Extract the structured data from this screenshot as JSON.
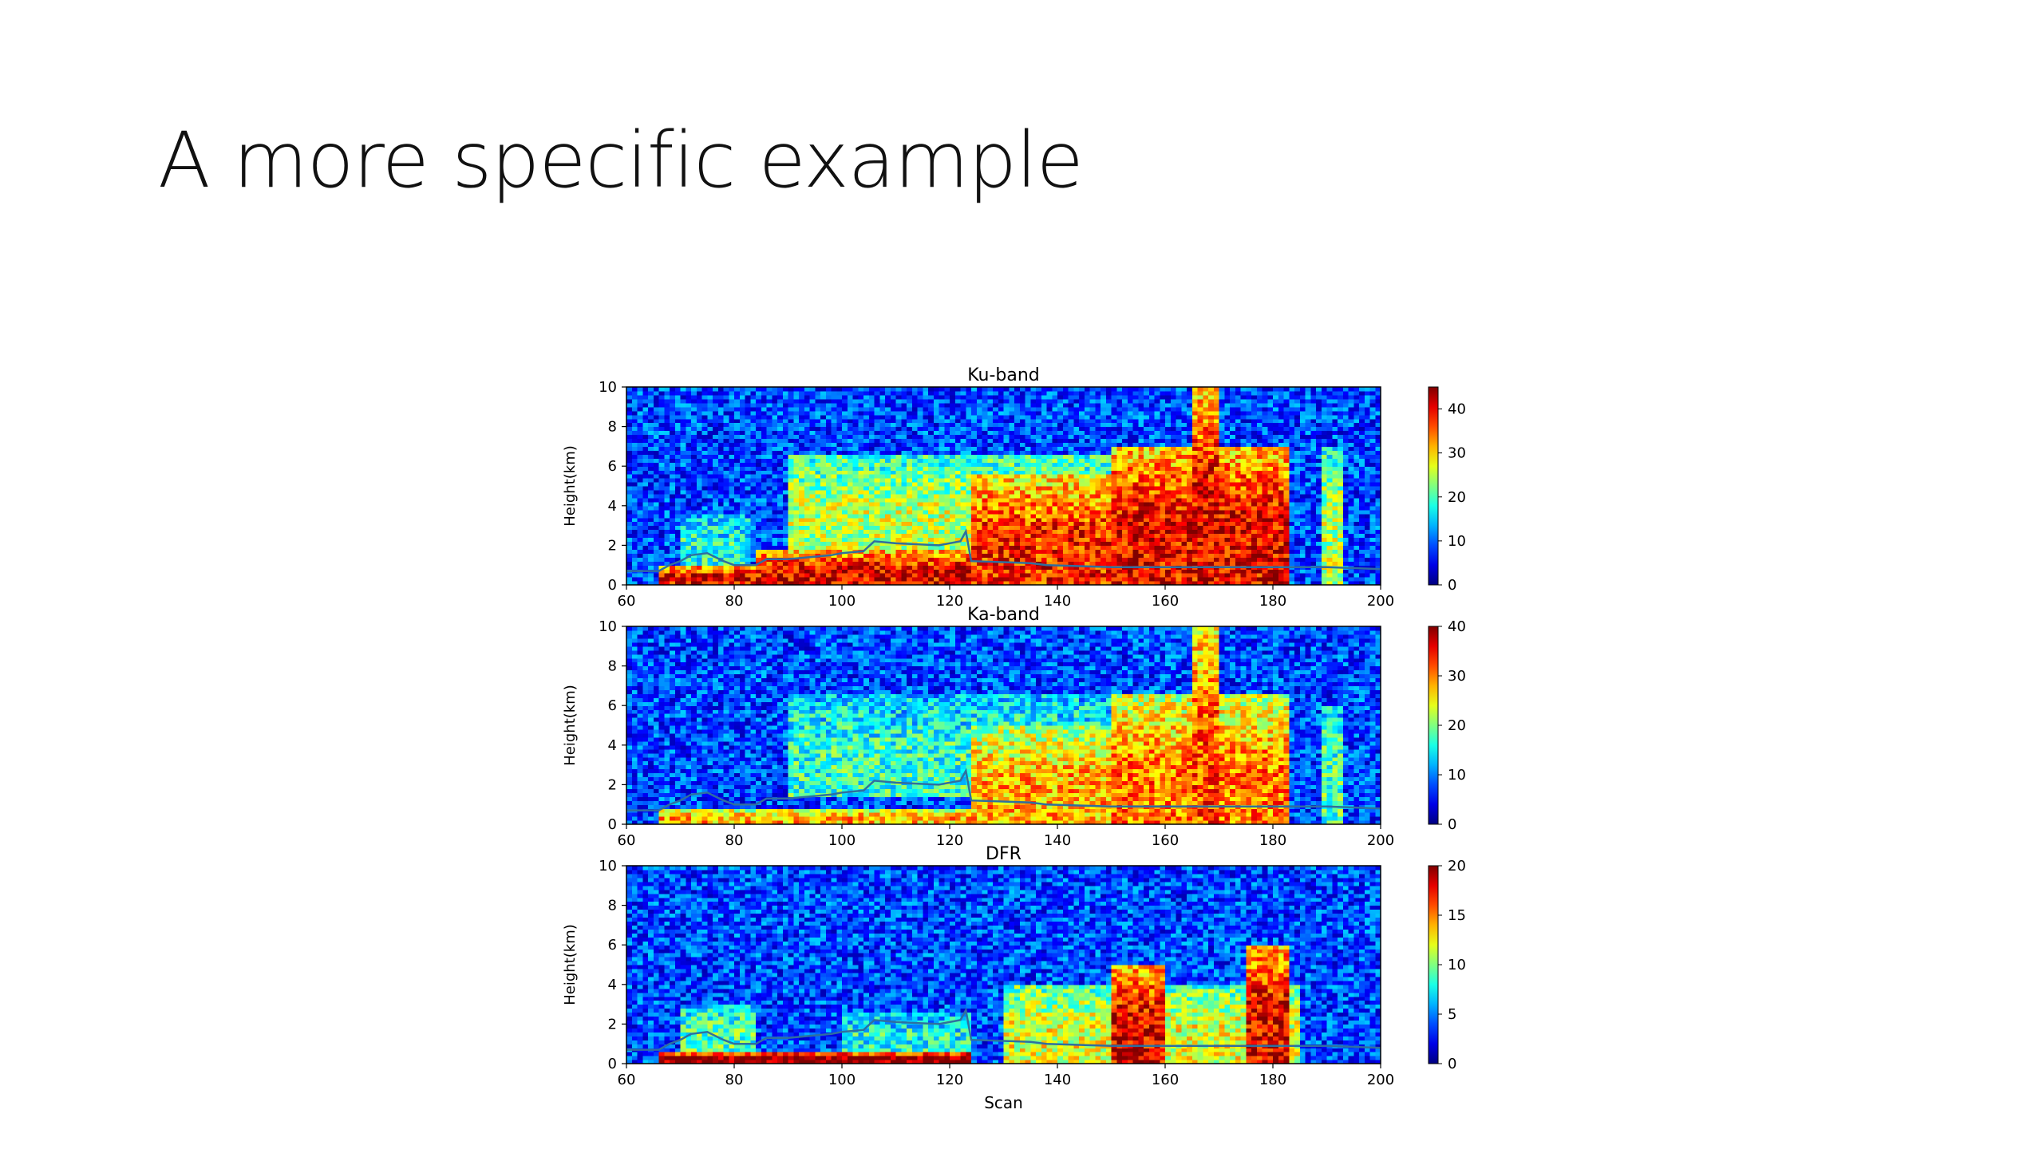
{
  "slide": {
    "title": "A more specific example"
  },
  "chart_data": [
    {
      "type": "heatmap",
      "title": "Ku-band",
      "xlabel": "",
      "ylabel": "Height(km)",
      "xlim": [
        60,
        200
      ],
      "ylim": [
        0,
        10
      ],
      "xticks": [
        60,
        80,
        100,
        120,
        140,
        160,
        180,
        200
      ],
      "yticks": [
        0,
        2,
        4,
        6,
        8,
        10
      ],
      "colorbar": {
        "min": 0,
        "max": 45,
        "ticks": [
          0,
          10,
          20,
          30,
          40
        ],
        "colormap": "jet"
      },
      "overlay_line_color": "#2f6f9f",
      "overlay_line": {
        "x": [
          60,
          66,
          68,
          70,
          72,
          75,
          78,
          80,
          84,
          86,
          90,
          94,
          98,
          100,
          104,
          106,
          110,
          118,
          122,
          123,
          124,
          135,
          138,
          150,
          155,
          160,
          170,
          180,
          190,
          200
        ],
        "y": [
          0.7,
          0.7,
          1.0,
          1.2,
          1.5,
          1.6,
          1.2,
          1.0,
          1.0,
          1.3,
          1.3,
          1.4,
          1.5,
          1.6,
          1.7,
          2.2,
          2.1,
          2.0,
          2.2,
          2.7,
          1.2,
          1.1,
          1.0,
          0.9,
          0.9,
          0.9,
          0.9,
          0.9,
          0.9,
          0.8
        ]
      },
      "features": [
        {
          "x": [
            66,
            84
          ],
          "y": [
            0,
            1.0
          ],
          "value": 40
        },
        {
          "x": [
            84,
            124
          ],
          "y": [
            0,
            1.8
          ],
          "value": 40
        },
        {
          "x": [
            70,
            83
          ],
          "y": [
            1.0,
            3.5
          ],
          "value": 18
        },
        {
          "x": [
            90,
            150
          ],
          "y": [
            1.5,
            6.5
          ],
          "value": 25
        },
        {
          "x": [
            124,
            150
          ],
          "y": [
            0,
            5.5
          ],
          "value": 38
        },
        {
          "x": [
            150,
            183
          ],
          "y": [
            0,
            7.0
          ],
          "value": 40
        },
        {
          "x": [
            165,
            170
          ],
          "y": [
            0,
            10
          ],
          "value": 40
        },
        {
          "x": [
            189,
            193
          ],
          "y": [
            0,
            7.0
          ],
          "value": 25
        }
      ]
    },
    {
      "type": "heatmap",
      "title": "Ka-band",
      "xlabel": "",
      "ylabel": "Height(km)",
      "xlim": [
        60,
        200
      ],
      "ylim": [
        0,
        10
      ],
      "xticks": [
        60,
        80,
        100,
        120,
        140,
        160,
        180,
        200
      ],
      "yticks": [
        0,
        2,
        4,
        6,
        8,
        10
      ],
      "colorbar": {
        "min": 0,
        "max": 40,
        "ticks": [
          0,
          10,
          20,
          30,
          40
        ],
        "colormap": "jet"
      },
      "overlay_line_color": "#2f6f9f",
      "overlay_line": {
        "x": [
          60,
          66,
          68,
          70,
          72,
          75,
          78,
          80,
          84,
          86,
          90,
          94,
          98,
          100,
          104,
          106,
          110,
          118,
          122,
          123,
          124,
          135,
          138,
          150,
          155,
          160,
          170,
          180,
          190,
          200
        ],
        "y": [
          0.7,
          0.7,
          1.0,
          1.2,
          1.5,
          1.6,
          1.2,
          1.0,
          1.0,
          1.3,
          1.3,
          1.4,
          1.5,
          1.6,
          1.7,
          2.2,
          2.1,
          2.0,
          2.2,
          2.7,
          1.2,
          1.1,
          1.0,
          0.9,
          0.9,
          0.9,
          0.9,
          0.9,
          0.9,
          0.8
        ]
      },
      "features": [
        {
          "x": [
            66,
            124
          ],
          "y": [
            0,
            0.8
          ],
          "value": 28
        },
        {
          "x": [
            90,
            150
          ],
          "y": [
            1.5,
            6.5
          ],
          "value": 17
        },
        {
          "x": [
            124,
            150
          ],
          "y": [
            0,
            5.0
          ],
          "value": 28
        },
        {
          "x": [
            150,
            183
          ],
          "y": [
            0,
            6.5
          ],
          "value": 30
        },
        {
          "x": [
            165,
            170
          ],
          "y": [
            0,
            10
          ],
          "value": 32
        },
        {
          "x": [
            189,
            193
          ],
          "y": [
            0,
            6.0
          ],
          "value": 18
        }
      ]
    },
    {
      "type": "heatmap",
      "title": "DFR",
      "xlabel": "Scan",
      "ylabel": "Height(km)",
      "xlim": [
        60,
        200
      ],
      "ylim": [
        0,
        10
      ],
      "xticks": [
        60,
        80,
        100,
        120,
        140,
        160,
        180,
        200
      ],
      "yticks": [
        0,
        2,
        4,
        6,
        8,
        10
      ],
      "colorbar": {
        "min": 0,
        "max": 20,
        "ticks": [
          0,
          5,
          10,
          15,
          20
        ],
        "colormap": "jet"
      },
      "overlay_line_color": "#2f6f9f",
      "overlay_line": {
        "x": [
          60,
          66,
          68,
          70,
          72,
          75,
          78,
          80,
          84,
          86,
          90,
          94,
          98,
          100,
          104,
          106,
          110,
          118,
          122,
          123,
          124,
          135,
          138,
          150,
          155,
          160,
          170,
          180,
          190,
          200
        ],
        "y": [
          0.7,
          0.7,
          1.0,
          1.2,
          1.5,
          1.6,
          1.2,
          1.0,
          1.0,
          1.3,
          1.3,
          1.4,
          1.5,
          1.6,
          1.7,
          2.2,
          2.1,
          2.0,
          2.2,
          2.7,
          1.2,
          1.1,
          1.0,
          0.9,
          0.9,
          0.9,
          0.9,
          0.9,
          0.9,
          0.8
        ]
      },
      "features": [
        {
          "x": [
            66,
            124
          ],
          "y": [
            0,
            0.6
          ],
          "value": 20
        },
        {
          "x": [
            70,
            84
          ],
          "y": [
            0.6,
            3.0
          ],
          "value": 9
        },
        {
          "x": [
            100,
            124
          ],
          "y": [
            0.6,
            2.5
          ],
          "value": 8
        },
        {
          "x": [
            150,
            160
          ],
          "y": [
            0,
            5.0
          ],
          "value": 18
        },
        {
          "x": [
            175,
            183
          ],
          "y": [
            0,
            6.0
          ],
          "value": 18
        },
        {
          "x": [
            130,
            185
          ],
          "y": [
            0,
            4.0
          ],
          "value": 12
        }
      ]
    }
  ]
}
